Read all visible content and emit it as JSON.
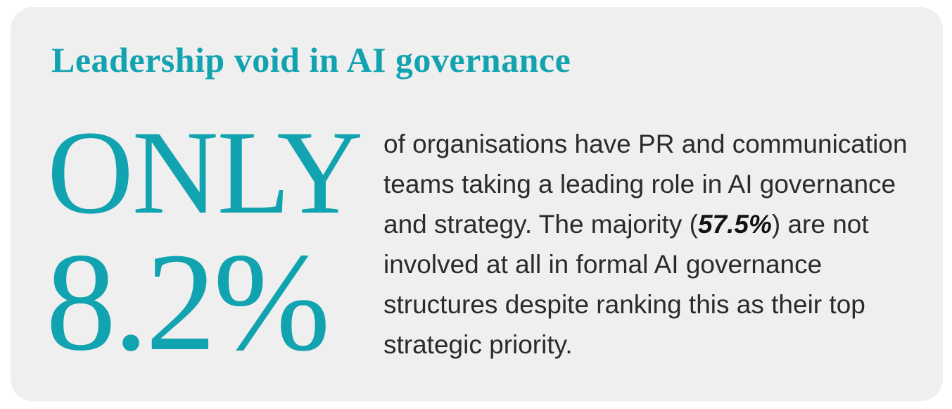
{
  "title": "Leadership void in AI governance",
  "highlight": {
    "label": "ONLY",
    "value": "8.2%"
  },
  "body": {
    "before": "of organisations have PR and communication teams taking a leading role in AI governance and strategy. The majority (",
    "emphasis": "57.5%",
    "after": ") are not involved at all in formal AI governance structures despite ranking this as their top strategic priority."
  }
}
